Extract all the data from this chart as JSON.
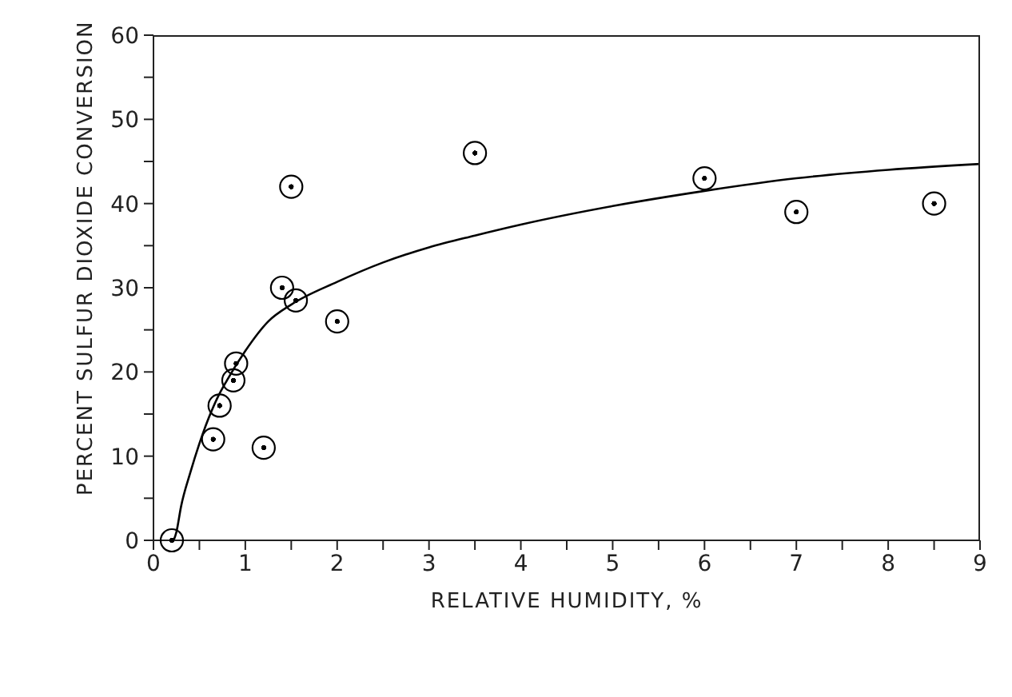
{
  "chart_data": {
    "type": "scatter",
    "xlabel": "RELATIVE HUMIDITY, %",
    "ylabel": "PERCENT SULFUR DIOXIDE CONVERSION",
    "xlim": [
      0,
      9
    ],
    "ylim": [
      0,
      60
    ],
    "xticks": [
      0,
      {
        "value": 0.5,
        "label": null
      },
      1,
      {
        "value": 1.5,
        "label": null
      },
      2,
      {
        "value": 2.5,
        "label": null
      },
      3,
      {
        "value": 3.5,
        "label": null
      },
      4,
      {
        "value": 4.5,
        "label": null
      },
      5,
      {
        "value": 5.5,
        "label": null
      },
      6,
      {
        "value": 6.5,
        "label": null
      },
      7,
      {
        "value": 7.5,
        "label": null
      },
      8,
      {
        "value": 8.5,
        "label": null
      },
      9
    ],
    "yticks": [
      0,
      {
        "value": 5,
        "label": null
      },
      10,
      {
        "value": 15,
        "label": null
      },
      20,
      {
        "value": 25,
        "label": null
      },
      30,
      {
        "value": 35,
        "label": null
      },
      40,
      {
        "value": 45,
        "label": null
      },
      50,
      {
        "value": 55,
        "label": null
      },
      60
    ],
    "grid": false,
    "legend": false,
    "marker": "circle",
    "series": [
      {
        "color": "#000000",
        "x": [
          0.2,
          0.65,
          0.72,
          0.87,
          0.9,
          1.2,
          1.4,
          1.5,
          1.55,
          2.0,
          3.5,
          6.0,
          7.0,
          8.5
        ],
        "values": [
          0,
          12,
          16,
          19,
          21,
          11,
          30,
          42,
          28.5,
          26,
          46,
          43,
          39,
          40
        ]
      },
      {
        "type": "line",
        "color": "#000000",
        "marker": "none",
        "x": [
          0.22,
          0.25,
          0.3,
          0.4,
          0.5,
          0.6,
          0.7,
          0.8,
          1.0,
          1.25,
          1.5,
          2,
          2.5,
          3,
          3.5,
          4,
          5,
          6,
          7,
          8,
          9
        ],
        "values": [
          0,
          1,
          4,
          8,
          11.5,
          14.5,
          17,
          19,
          22.5,
          26,
          28,
          30.7,
          33,
          34.8,
          36.2,
          37.5,
          39.7,
          41.5,
          43,
          44,
          44.7
        ]
      }
    ]
  }
}
